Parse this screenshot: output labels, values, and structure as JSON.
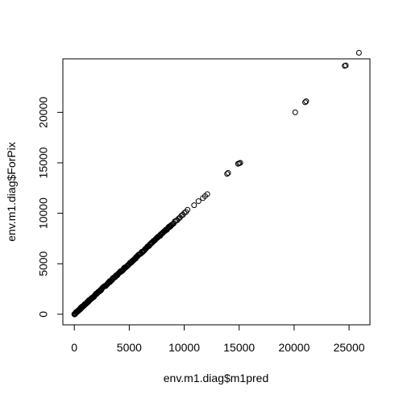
{
  "chart_data": {
    "type": "scatter",
    "xlabel": "env.m1.diag$m1pred",
    "ylabel": "env.m1.diag$ForPix",
    "xlim": [
      -1040,
      26900
    ],
    "ylim": [
      -1050,
      25300
    ],
    "xticks": [
      0,
      5000,
      10000,
      15000,
      20000,
      25000
    ],
    "yticks": [
      0,
      5000,
      10000,
      15000,
      20000
    ],
    "grid": false,
    "point_style": "open-circle",
    "clusters": [
      {
        "x_from": 0,
        "x_to": 8800,
        "count": 200,
        "noise": 70
      },
      {
        "x_from": 8800,
        "x_to": 10300,
        "count": 14,
        "noise": 60
      }
    ],
    "points": [
      [
        10900,
        10800
      ],
      [
        11300,
        11200
      ],
      [
        11700,
        11500
      ],
      [
        11900,
        11700
      ],
      [
        12100,
        11900
      ],
      [
        13900,
        13900
      ],
      [
        14000,
        14000
      ],
      [
        14900,
        14900
      ],
      [
        15100,
        15000
      ],
      [
        15000,
        14950
      ],
      [
        20100,
        20000
      ],
      [
        21000,
        21000
      ],
      [
        21100,
        21100
      ],
      [
        24600,
        24600
      ],
      [
        24700,
        24650
      ],
      [
        25900,
        25900
      ]
    ]
  }
}
